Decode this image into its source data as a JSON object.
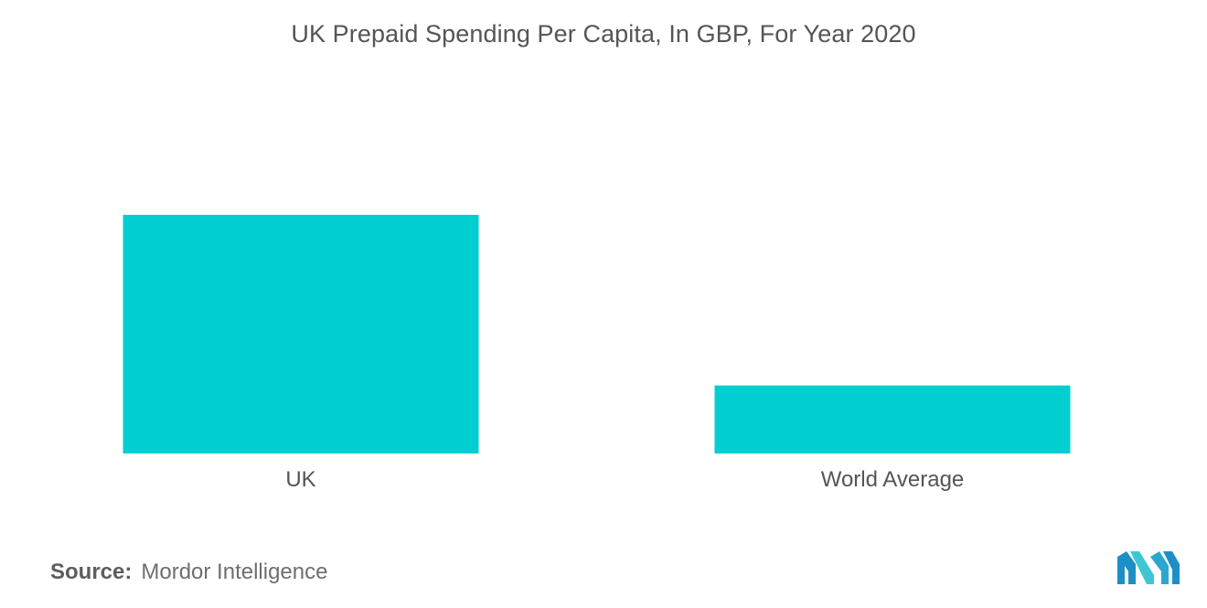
{
  "chart_data": {
    "type": "bar",
    "title": "UK Prepaid Spending Per Capita, In GBP, For Year 2020",
    "categories": [
      "UK",
      "World Average"
    ],
    "values": [
      100,
      28.5
    ],
    "value_axis_shown": false,
    "grid": false,
    "legend": "none",
    "bar_color": "#00CED1"
  },
  "source": {
    "label": "Source:",
    "text": "Mordor Intelligence"
  },
  "logo": {
    "icon": "mordor-intelligence-logo",
    "colors": [
      "#1e90c8",
      "#3fc6d3"
    ]
  }
}
